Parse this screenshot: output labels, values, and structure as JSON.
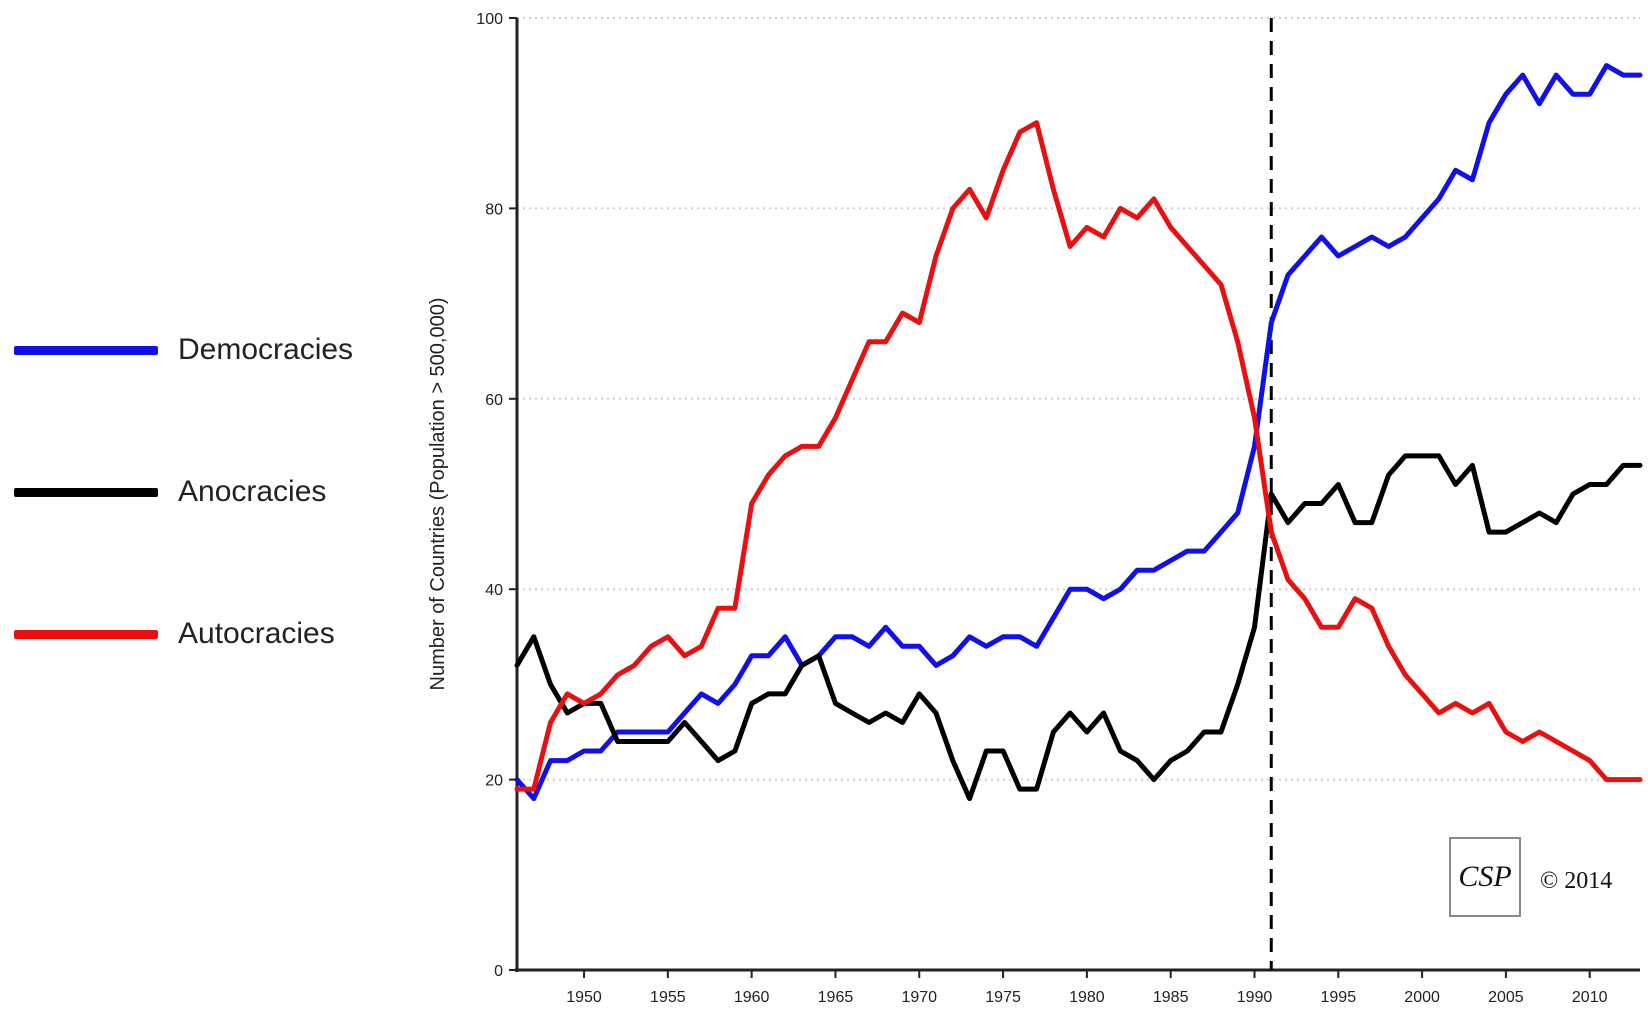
{
  "chart_data": {
    "type": "line",
    "title": "",
    "xlabel": "",
    "ylabel": "Number of Countries (Population > 500,000)",
    "xlim": [
      1946,
      2013
    ],
    "ylim": [
      0,
      100
    ],
    "x_ticks": [
      1950,
      1955,
      1960,
      1965,
      1970,
      1975,
      1980,
      1985,
      1990,
      1995,
      2000,
      2005,
      2010
    ],
    "y_ticks": [
      0,
      20,
      40,
      60,
      80,
      100
    ],
    "grid": "horizontal dotted",
    "legend_position": "left",
    "reference_line": {
      "x": 1991,
      "style": "dashed",
      "color": "#000000"
    },
    "x": [
      1946,
      1947,
      1948,
      1949,
      1950,
      1951,
      1952,
      1953,
      1954,
      1955,
      1956,
      1957,
      1958,
      1959,
      1960,
      1961,
      1962,
      1963,
      1964,
      1965,
      1966,
      1967,
      1968,
      1969,
      1970,
      1971,
      1972,
      1973,
      1974,
      1975,
      1976,
      1977,
      1978,
      1979,
      1980,
      1981,
      1982,
      1983,
      1984,
      1985,
      1986,
      1987,
      1988,
      1989,
      1990,
      1991,
      1992,
      1993,
      1994,
      1995,
      1996,
      1997,
      1998,
      1999,
      2000,
      2001,
      2002,
      2003,
      2004,
      2005,
      2006,
      2007,
      2008,
      2009,
      2010,
      2011,
      2012,
      2013
    ],
    "series": [
      {
        "name": "Democracies",
        "color": "#1010e8",
        "values": [
          20,
          18,
          22,
          22,
          23,
          23,
          25,
          25,
          25,
          25,
          27,
          29,
          28,
          30,
          33,
          33,
          35,
          32,
          33,
          35,
          35,
          34,
          36,
          34,
          34,
          32,
          33,
          35,
          34,
          35,
          35,
          34,
          37,
          40,
          40,
          39,
          40,
          42,
          42,
          43,
          44,
          44,
          46,
          48,
          55,
          68,
          73,
          75,
          77,
          75,
          76,
          77,
          76,
          77,
          79,
          81,
          84,
          83,
          89,
          92,
          94,
          91,
          94,
          92,
          92,
          95,
          94,
          94
        ]
      },
      {
        "name": "Anocracies",
        "color": "#000000",
        "values": [
          32,
          35,
          30,
          27,
          28,
          28,
          24,
          24,
          24,
          24,
          26,
          24,
          22,
          23,
          28,
          29,
          29,
          32,
          33,
          28,
          27,
          26,
          27,
          26,
          29,
          27,
          22,
          18,
          23,
          23,
          19,
          19,
          25,
          27,
          25,
          27,
          23,
          22,
          20,
          22,
          23,
          25,
          25,
          30,
          36,
          50,
          47,
          49,
          49,
          51,
          47,
          47,
          52,
          54,
          54,
          54,
          51,
          53,
          46,
          46,
          47,
          48,
          47,
          50,
          51,
          51,
          53,
          53
        ]
      },
      {
        "name": "Autocracies",
        "color": "#e81010",
        "values": [
          19,
          19,
          26,
          29,
          28,
          29,
          31,
          32,
          34,
          35,
          33,
          34,
          38,
          38,
          49,
          52,
          54,
          55,
          55,
          58,
          62,
          66,
          66,
          69,
          68,
          75,
          80,
          82,
          79,
          84,
          88,
          89,
          82,
          76,
          78,
          77,
          80,
          79,
          81,
          78,
          76,
          74,
          72,
          66,
          58,
          46,
          41,
          39,
          36,
          36,
          39,
          38,
          34,
          31,
          29,
          27,
          28,
          27,
          28,
          25,
          24,
          25,
          24,
          23,
          22,
          20,
          20,
          20
        ]
      }
    ],
    "annotations": {
      "logo_text": "CSP",
      "copyright": "© 2014"
    }
  }
}
